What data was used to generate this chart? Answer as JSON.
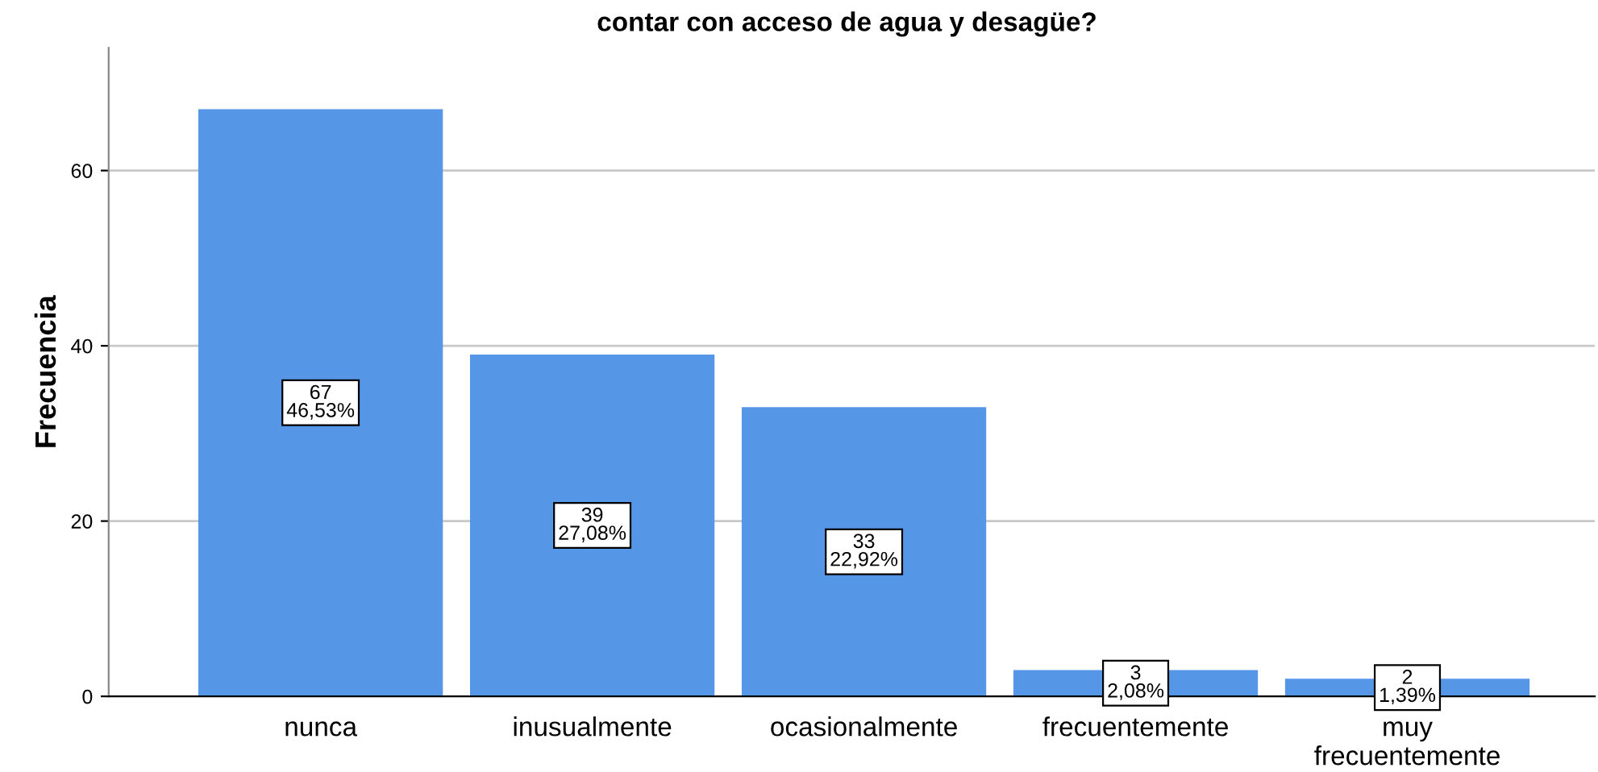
{
  "chart_data": {
    "type": "bar",
    "title": "contar con acceso de agua y desagüe?",
    "ylabel": "Frecuencia",
    "categories": [
      "nunca",
      "inusualmente",
      "ocasionalmente",
      "frecuentemente",
      "muy\nfrecuentemente"
    ],
    "values": [
      67,
      39,
      33,
      3,
      2
    ],
    "color": "#5596e6",
    "value_labels": [
      "67\n46,53%",
      "39\n27,08%",
      "33\n22,92%",
      "3\n2,08%",
      "2\n1,39%"
    ],
    "ylim": [
      0,
      74
    ],
    "yticks": [
      0,
      20,
      40,
      60
    ],
    "grid": "y"
  }
}
